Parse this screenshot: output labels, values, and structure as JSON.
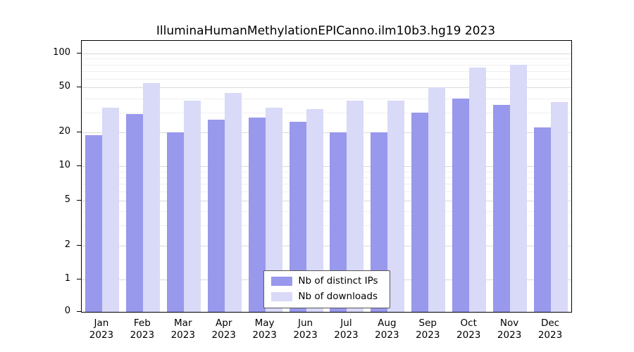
{
  "title": "IlluminaHumanMethylationEPICanno.ilm10b3.hg19 2023",
  "legend": {
    "series1_label": "Nb of distinct IPs",
    "series2_label": "Nb of downloads"
  },
  "colors": {
    "bar_ips": "#9898ec",
    "bar_downloads": "#d9d9f8",
    "grid_major": "#d9d9d9",
    "grid_minor": "#efefef",
    "axis": "#000000",
    "legend_border": "#555555"
  },
  "chart_data": {
    "type": "bar",
    "title": "IlluminaHumanMethylationEPICanno.ilm10b3.hg19 2023",
    "xlabel": "",
    "ylabel": "",
    "yscale": "log (0 pinned to baseline)",
    "grid": true,
    "legend_position": "bottom-center-inside",
    "year": "2023",
    "categories": [
      "Jan",
      "Feb",
      "Mar",
      "Apr",
      "May",
      "Jun",
      "Jul",
      "Aug",
      "Sep",
      "Oct",
      "Nov",
      "Dec"
    ],
    "yticks": [
      0,
      1,
      2,
      5,
      10,
      20,
      50,
      100
    ],
    "ylim": [
      0,
      110
    ],
    "series": [
      {
        "name": "Nb of distinct IPs",
        "values": [
          19,
          29,
          20,
          26,
          27,
          25,
          20,
          20,
          30,
          40,
          35,
          22
        ]
      },
      {
        "name": "Nb of downloads",
        "values": [
          33,
          55,
          38,
          45,
          33,
          32,
          38,
          38,
          50,
          75,
          80,
          37
        ]
      }
    ]
  }
}
